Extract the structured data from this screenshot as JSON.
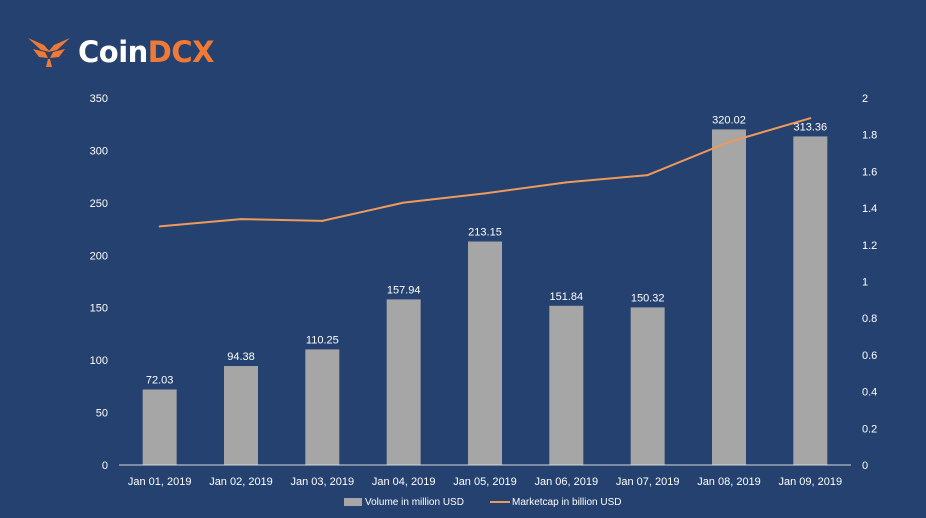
{
  "brand": {
    "name_part1": "Coin",
    "name_part2": "DCX",
    "primary_color": "#f07a35",
    "logo_icon": "coindcx-bird-icon"
  },
  "colors": {
    "background": "#24416f",
    "bar": "#a6a6a6",
    "line": "#ef9a5b",
    "text": "#ffffff",
    "axis": "#d9d9d9"
  },
  "chart_data": {
    "type": "bar",
    "title": "",
    "xlabel": "",
    "ylabel": "",
    "y2label": "",
    "categories": [
      "Jan 01, 2019",
      "Jan 02, 2019",
      "Jan 03, 2019",
      "Jan 04, 2019",
      "Jan 05, 2019",
      "Jan 06, 2019",
      "Jan 07, 2019",
      "Jan 08, 2019",
      "Jan 09, 2019"
    ],
    "series": [
      {
        "name": "Volume in million USD",
        "type": "bar",
        "axis": "left",
        "values": [
          72.03,
          94.38,
          110.25,
          157.94,
          213.15,
          151.84,
          150.32,
          320.02,
          313.36
        ],
        "labels": [
          "72.03",
          "94.38",
          "110.25",
          "157.94",
          "213.15",
          "151.84",
          "150.32",
          "320.02",
          "313.36"
        ]
      },
      {
        "name": "Marketcap in billion USD",
        "type": "line",
        "axis": "right",
        "values": [
          1.3,
          1.34,
          1.33,
          1.43,
          1.48,
          1.54,
          1.58,
          1.76,
          1.89
        ]
      }
    ],
    "ylim": [
      0,
      350
    ],
    "y_ticks": [
      "0",
      "50",
      "100",
      "150",
      "200",
      "250",
      "300",
      "350"
    ],
    "y_tick_values": [
      0,
      50,
      100,
      150,
      200,
      250,
      300,
      350
    ],
    "y2lim": [
      0,
      2
    ],
    "y2_ticks": [
      "0",
      "0.2",
      "0.4",
      "0.6",
      "0.8",
      "1",
      "1.2",
      "1.4",
      "1.6",
      "1.8",
      "2"
    ],
    "y2_tick_values": [
      0,
      0.2,
      0.4,
      0.6,
      0.8,
      1,
      1.2,
      1.4,
      1.6,
      1.8,
      2
    ],
    "grid": false,
    "legend": "bottom-center"
  }
}
